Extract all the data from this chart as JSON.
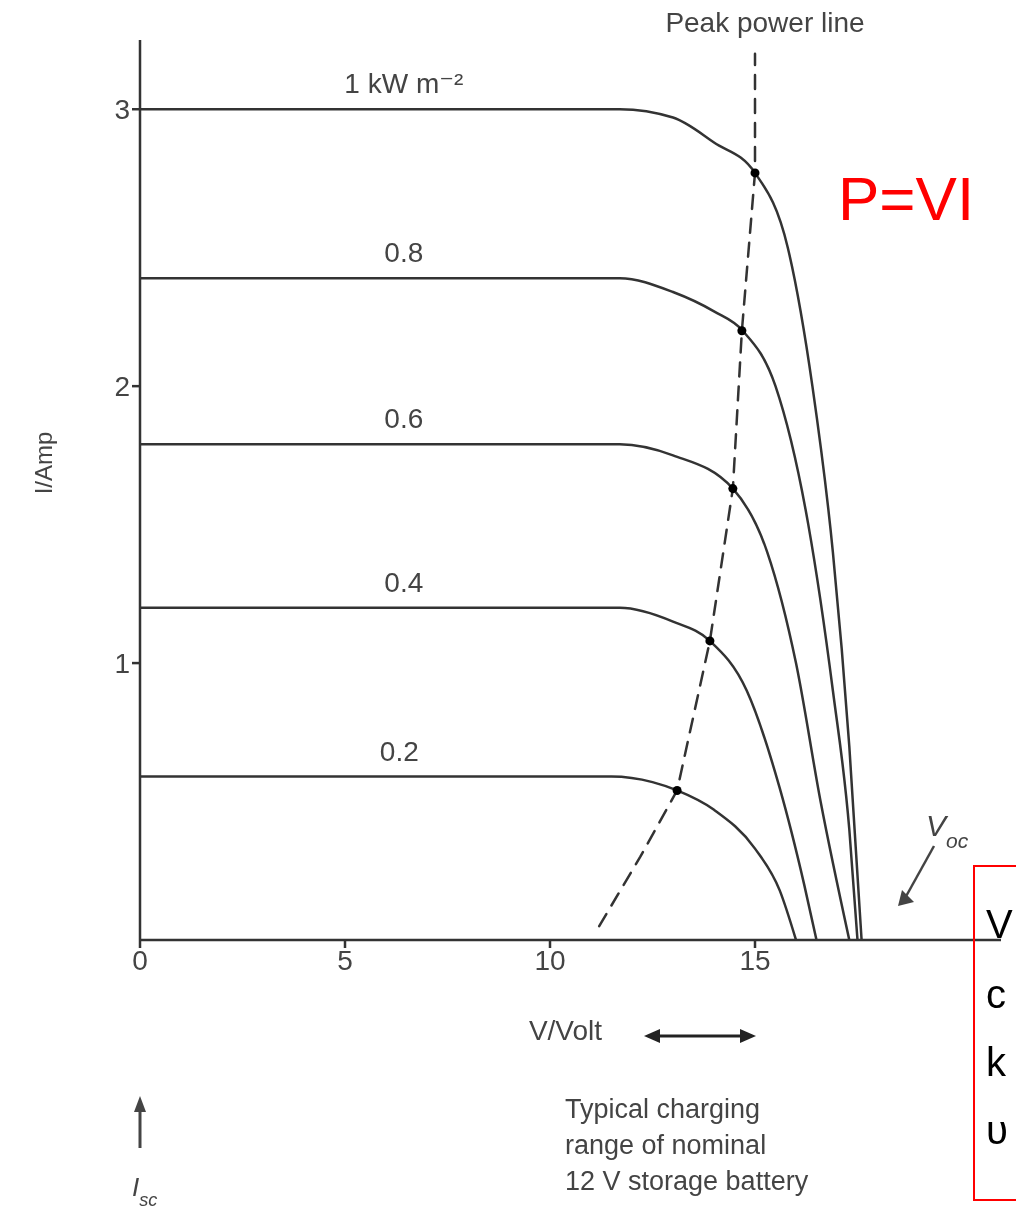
{
  "chart_data": {
    "type": "line",
    "xlabel": "V/Volt",
    "ylabel": "I/Amp",
    "xlim": [
      0,
      21
    ],
    "ylim": [
      0,
      3.25
    ],
    "xticks": [
      0,
      5,
      10,
      15
    ],
    "yticks": [
      1,
      2,
      3
    ],
    "series": [
      {
        "name": "1 kW m⁻²",
        "color": "#333333",
        "marker": "none",
        "line_style": "solid",
        "x": [
          0,
          11.7,
          13,
          14,
          15,
          15.8,
          16.4,
          16.9,
          17.3,
          17.6
        ],
        "values": [
          3,
          3,
          2.97,
          2.88,
          2.77,
          2.5,
          2,
          1.4,
          0.7,
          0
        ]
      },
      {
        "name": "0.8",
        "color": "#333333",
        "marker": "none",
        "line_style": "solid",
        "x": [
          0,
          11.7,
          13,
          14,
          14.7,
          15.5,
          16.3,
          16.9,
          17.3,
          17.5
        ],
        "values": [
          2.39,
          2.39,
          2.34,
          2.27,
          2.2,
          2,
          1.5,
          0.9,
          0.4,
          0
        ]
      },
      {
        "name": "0.6",
        "color": "#333333",
        "marker": "none",
        "line_style": "solid",
        "x": [
          0,
          11.7,
          13,
          14.46,
          15.3,
          16,
          16.6,
          17.3
        ],
        "values": [
          1.79,
          1.79,
          1.75,
          1.63,
          1.4,
          1,
          0.5,
          0
        ]
      },
      {
        "name": "0.4",
        "color": "#333333",
        "marker": "none",
        "line_style": "solid",
        "x": [
          0,
          11.7,
          13,
          13.9,
          14.8,
          15.6,
          16.2,
          16.5
        ],
        "values": [
          1.2,
          1.2,
          1.15,
          1.08,
          0.9,
          0.55,
          0.2,
          0
        ]
      },
      {
        "name": "0.2",
        "color": "#333333",
        "marker": "none",
        "line_style": "solid",
        "x": [
          0,
          11.5,
          12.5,
          13.1,
          14,
          15,
          15.6,
          16
        ],
        "values": [
          0.59,
          0.59,
          0.57,
          0.54,
          0.47,
          0.33,
          0.18,
          0
        ]
      },
      {
        "name": "Peak power line",
        "color": "#333333",
        "marker": "none",
        "line_style": "dashed",
        "x": [
          11.2,
          12.2,
          13.1,
          13.9,
          14.46,
          14.68,
          15,
          15
        ],
        "values": [
          0.05,
          0.3,
          0.54,
          1.08,
          1.63,
          2.2,
          2.77,
          3.2
        ]
      },
      {
        "type": "scatter",
        "color": "#000000",
        "marker": "circle",
        "x": [
          15,
          14.68,
          14.46,
          13.9,
          13.1
        ],
        "values": [
          2.77,
          2.2,
          1.63,
          1.08,
          0.54
        ]
      }
    ],
    "annotations": [
      "P=VI",
      "V$_{oc}$",
      "I$_{sc}$",
      "Typical charging range of nominal 12 V storage battery",
      "V",
      "c",
      "k",
      "υ"
    ]
  }
}
